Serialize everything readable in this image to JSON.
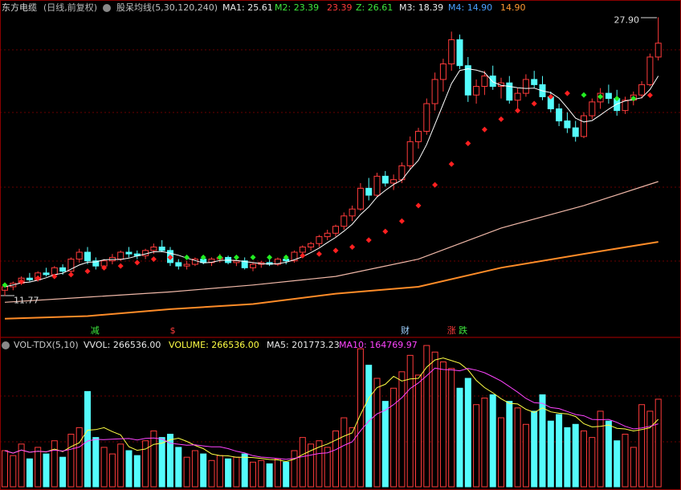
{
  "chart_data": {
    "type": "candlestick",
    "stock_name": "东方电缆",
    "period": "(日线,前复权)",
    "indicator": "股呆均线(5,30,120,240)",
    "indicator_labels": [
      "MA1: 25.61",
      "M2: 23.39",
      "23.39",
      "Z: 26.61",
      "M3: 18.39",
      "M4: 14.90",
      "14.90"
    ],
    "volume_labels": [
      "VOL-TDX(5,10)",
      "VVOL: 266536.00",
      "VOLUME: 266536.00",
      "MA5: 201773.23",
      "MA10: 164769.97"
    ],
    "max_label": {
      "value": 27.9,
      "label": "27.90"
    },
    "min_label": {
      "value": 11.77,
      "label": "11.77"
    },
    "ylim": [
      10.3,
      28.9
    ],
    "vlim": [
      0,
      440000
    ],
    "up_color": "#ff3b3b",
    "down_color": "#54fcfc",
    "candles": [
      [
        12.1,
        12.4,
        11.77,
        12.3
      ],
      [
        12.3,
        12.6,
        12.1,
        12.5
      ],
      [
        12.5,
        12.9,
        12.4,
        12.8
      ],
      [
        12.8,
        13.1,
        12.6,
        12.7
      ],
      [
        12.7,
        13.2,
        12.6,
        13.1
      ],
      [
        13.1,
        13.4,
        12.9,
        13.0
      ],
      [
        13.0,
        13.5,
        12.9,
        13.4
      ],
      [
        13.4,
        13.6,
        13.0,
        13.2
      ],
      [
        13.2,
        14.0,
        13.1,
        13.9
      ],
      [
        13.9,
        14.5,
        13.7,
        14.3
      ],
      [
        14.3,
        14.6,
        13.6,
        13.8
      ],
      [
        13.8,
        14.0,
        13.3,
        13.5
      ],
      [
        13.5,
        13.9,
        13.3,
        13.8
      ],
      [
        13.8,
        14.2,
        13.6,
        14.0
      ],
      [
        13.9,
        14.4,
        13.8,
        14.3
      ],
      [
        14.3,
        14.6,
        14.0,
        14.2
      ],
      [
        14.2,
        14.4,
        13.9,
        14.1
      ],
      [
        14.1,
        14.5,
        13.9,
        14.4
      ],
      [
        14.4,
        14.8,
        14.2,
        14.6
      ],
      [
        14.6,
        15.0,
        14.3,
        14.4
      ],
      [
        14.4,
        14.6,
        13.5,
        13.7
      ],
      [
        13.7,
        13.9,
        13.3,
        13.5
      ],
      [
        13.5,
        13.8,
        13.3,
        13.6
      ],
      [
        13.6,
        14.0,
        13.5,
        13.9
      ],
      [
        13.9,
        14.1,
        13.6,
        13.7
      ],
      [
        13.7,
        14.0,
        13.5,
        13.9
      ],
      [
        13.9,
        14.2,
        13.7,
        14.0
      ],
      [
        14.0,
        14.1,
        13.6,
        13.7
      ],
      [
        13.7,
        13.9,
        13.5,
        13.8
      ],
      [
        13.8,
        14.0,
        13.3,
        13.4
      ],
      [
        13.4,
        13.7,
        13.2,
        13.6
      ],
      [
        13.6,
        13.8,
        13.4,
        13.7
      ],
      [
        13.7,
        13.9,
        13.5,
        13.6
      ],
      [
        13.6,
        14.0,
        13.5,
        13.9
      ],
      [
        13.9,
        14.0,
        13.6,
        13.8
      ],
      [
        13.8,
        14.4,
        13.7,
        14.3
      ],
      [
        14.3,
        14.7,
        14.1,
        14.6
      ],
      [
        14.6,
        14.9,
        14.4,
        14.8
      ],
      [
        14.8,
        15.3,
        14.6,
        15.2
      ],
      [
        15.2,
        15.6,
        15.0,
        15.4
      ],
      [
        15.4,
        15.9,
        15.2,
        15.8
      ],
      [
        15.8,
        16.6,
        15.6,
        16.4
      ],
      [
        16.4,
        17.0,
        16.1,
        16.8
      ],
      [
        16.8,
        18.3,
        16.7,
        18.0
      ],
      [
        18.0,
        18.6,
        17.3,
        17.6
      ],
      [
        17.6,
        18.9,
        17.5,
        18.7
      ],
      [
        18.7,
        19.0,
        18.1,
        18.3
      ],
      [
        18.3,
        18.8,
        17.9,
        18.5
      ],
      [
        18.5,
        19.5,
        18.3,
        19.3
      ],
      [
        19.3,
        21.0,
        19.1,
        20.7
      ],
      [
        20.7,
        21.5,
        20.3,
        21.3
      ],
      [
        21.3,
        23.2,
        21.1,
        22.9
      ],
      [
        22.9,
        24.7,
        22.5,
        24.3
      ],
      [
        24.3,
        25.5,
        23.6,
        25.2
      ],
      [
        25.2,
        27.07,
        24.8,
        26.6
      ],
      [
        26.6,
        26.9,
        24.9,
        25.1
      ],
      [
        25.1,
        25.6,
        23.0,
        23.4
      ],
      [
        23.4,
        24.3,
        22.9,
        23.9
      ],
      [
        23.9,
        24.8,
        23.4,
        24.5
      ],
      [
        24.5,
        25.1,
        23.7,
        23.9
      ],
      [
        23.9,
        24.4,
        23.2,
        24.1
      ],
      [
        24.1,
        24.5,
        22.9,
        23.1
      ],
      [
        23.1,
        23.8,
        22.6,
        23.5
      ],
      [
        23.5,
        24.6,
        23.3,
        24.3
      ],
      [
        24.3,
        24.8,
        23.8,
        24.0
      ],
      [
        24.0,
        24.5,
        23.1,
        23.3
      ],
      [
        23.3,
        23.6,
        22.4,
        22.6
      ],
      [
        22.6,
        22.9,
        21.6,
        21.9
      ],
      [
        21.9,
        22.4,
        21.2,
        21.5
      ],
      [
        21.5,
        21.9,
        20.7,
        21.0
      ],
      [
        21.0,
        22.4,
        20.9,
        22.2
      ],
      [
        22.2,
        23.2,
        22.0,
        23.0
      ],
      [
        23.0,
        23.8,
        22.6,
        23.5
      ],
      [
        23.5,
        24.0,
        22.9,
        23.2
      ],
      [
        23.2,
        23.7,
        22.2,
        22.5
      ],
      [
        22.5,
        23.3,
        22.3,
        23.1
      ],
      [
        23.1,
        23.6,
        22.8,
        23.4
      ],
      [
        23.4,
        24.2,
        23.2,
        24.0
      ],
      [
        24.0,
        25.8,
        23.9,
        25.6
      ],
      [
        25.6,
        27.9,
        25.4,
        26.4
      ]
    ],
    "volumes": [
      110000,
      95000,
      130000,
      85000,
      120000,
      100000,
      140000,
      90000,
      160000,
      180000,
      290000,
      150000,
      120000,
      100000,
      130000,
      110000,
      95000,
      140000,
      170000,
      150000,
      160000,
      120000,
      90000,
      110000,
      100000,
      80000,
      95000,
      85000,
      90000,
      100000,
      75000,
      80000,
      70000,
      85000,
      75000,
      110000,
      150000,
      130000,
      140000,
      120000,
      170000,
      210000,
      180000,
      420000,
      370000,
      330000,
      260000,
      300000,
      350000,
      400000,
      340000,
      430000,
      410000,
      380000,
      360000,
      300000,
      330000,
      250000,
      270000,
      280000,
      210000,
      260000,
      240000,
      190000,
      230000,
      280000,
      200000,
      220000,
      180000,
      190000,
      170000,
      150000,
      230000,
      200000,
      140000,
      160000,
      120000,
      250000,
      230000,
      266536
    ],
    "ma30": {
      "x": [
        0,
        2,
        4,
        6,
        8,
        10,
        12,
        14,
        16,
        18,
        20,
        22,
        24,
        26,
        28,
        30,
        32,
        34,
        36,
        38,
        40,
        42,
        44,
        46,
        48,
        50,
        52,
        54,
        56,
        58,
        60,
        62,
        64,
        66,
        68,
        70,
        72,
        74,
        76,
        78
      ],
      "values": [
        12.4,
        12.6,
        12.8,
        12.9,
        13.0,
        13.2,
        13.4,
        13.5,
        13.7,
        13.9,
        14.0,
        14.0,
        14.0,
        14.0,
        14.0,
        14.0,
        14.0,
        14.0,
        14.1,
        14.2,
        14.4,
        14.6,
        15.0,
        15.5,
        16.1,
        17.0,
        18.2,
        19.4,
        20.6,
        21.4,
        22.0,
        22.5,
        22.9,
        23.3,
        23.5,
        23.4,
        23.3,
        23.2,
        23.2,
        23.39
      ],
      "rise_color": "#ff2020",
      "fall_color": "#22ee22"
    },
    "series": [
      {
        "x": [
          0,
          10,
          20,
          30,
          40,
          50,
          60,
          70,
          79
        ],
        "values": [
          11.4,
          11.7,
          12.0,
          12.4,
          12.9,
          13.9,
          15.7,
          17.0,
          18.39
        ],
        "color": "#f0b8a8"
      },
      {
        "x": [
          0,
          10,
          20,
          30,
          40,
          50,
          60,
          70,
          79
        ],
        "values": [
          10.45,
          10.6,
          11.0,
          11.3,
          11.9,
          12.3,
          13.4,
          14.2,
          14.9
        ],
        "color": "#ff8c28"
      }
    ],
    "ma5_color": "#ffffff",
    "vol_ma_colors": [
      "#ffff44",
      "#ff44ff"
    ],
    "annotations": [
      {
        "text": "减",
        "x": 10.9,
        "color": "#3ee83e"
      },
      {
        "text": "$",
        "x": 20.3,
        "color": "#ff3b3b"
      },
      {
        "text": "财",
        "x": 48.4,
        "color": "#9fd0ff"
      },
      {
        "text": "涨",
        "x": 54,
        "color": "#ff3b3b"
      },
      {
        "text": "跌",
        "x": 55.4,
        "color": "#3ee83e"
      }
    ]
  }
}
